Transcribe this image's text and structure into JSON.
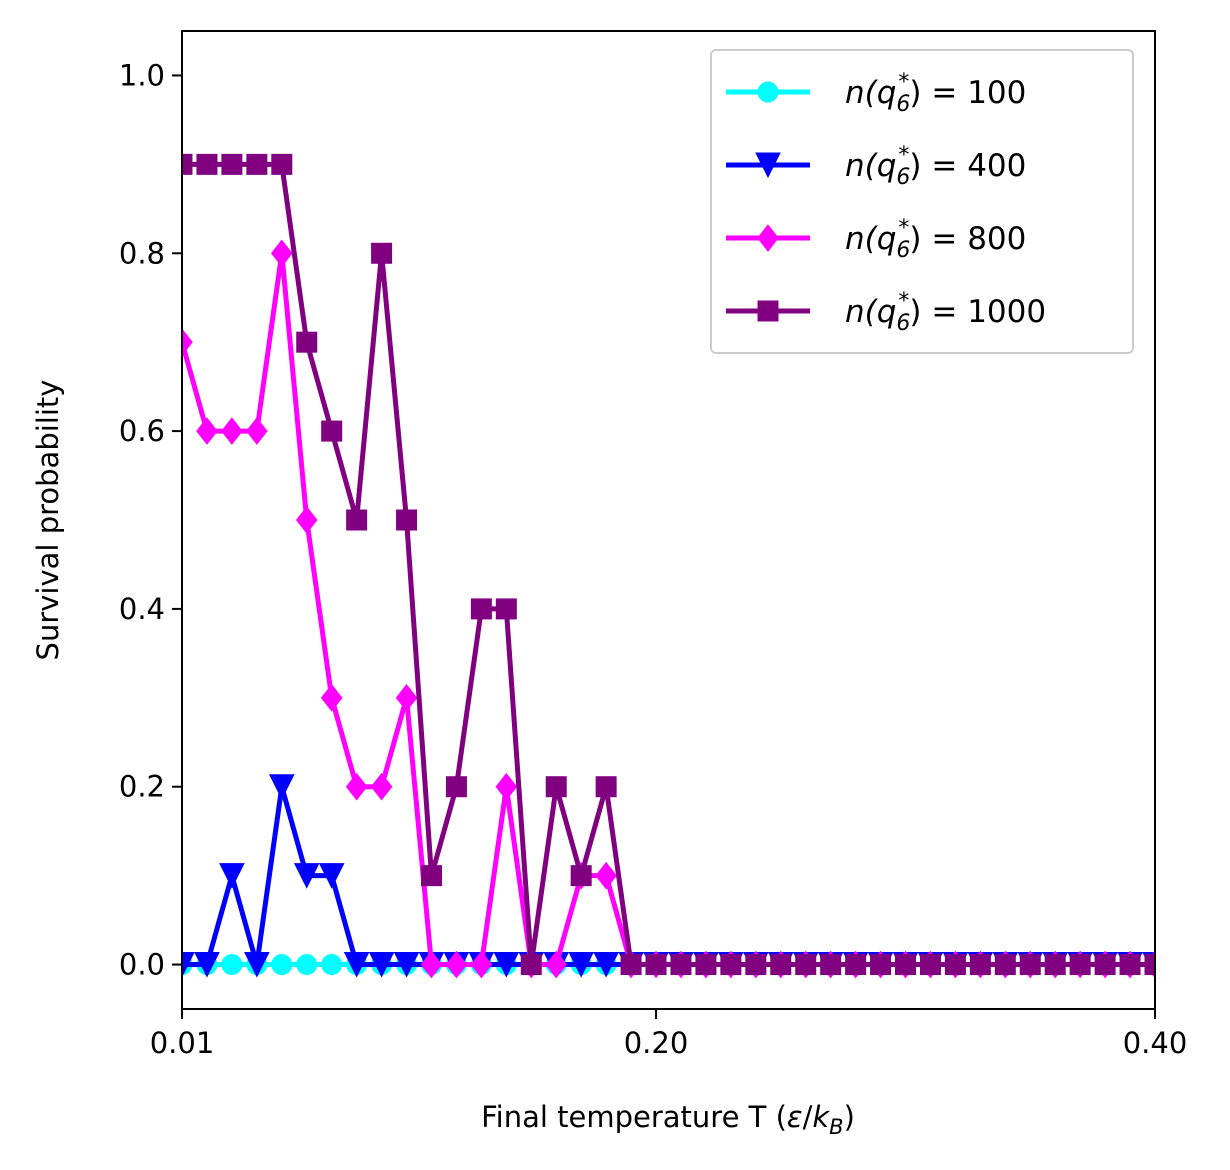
{
  "chart_data": {
    "type": "line",
    "xlabel": "Final temperature T (ε/k_B)",
    "ylabel": "Survival probability",
    "xlim": [
      0.01,
      0.4
    ],
    "ylim": [
      -0.05,
      1.05
    ],
    "xticks": [
      0.01,
      0.2,
      0.4
    ],
    "xtick_labels": [
      "0.01",
      "0.20",
      "0.40"
    ],
    "yticks": [
      0.0,
      0.2,
      0.4,
      0.6,
      0.8,
      1.0
    ],
    "ytick_labels": [
      "0.0",
      "0.2",
      "0.4",
      "0.6",
      "0.8",
      "1.0"
    ],
    "grid": false,
    "legend_position": "top-right",
    "x": [
      0.01,
      0.02,
      0.03,
      0.04,
      0.05,
      0.06,
      0.07,
      0.08,
      0.09,
      0.1,
      0.11,
      0.12,
      0.13,
      0.14,
      0.15,
      0.16,
      0.17,
      0.18,
      0.19,
      0.2,
      0.21,
      0.22,
      0.23,
      0.24,
      0.25,
      0.26,
      0.27,
      0.28,
      0.29,
      0.3,
      0.31,
      0.32,
      0.33,
      0.34,
      0.35,
      0.36,
      0.37,
      0.38,
      0.39,
      0.4
    ],
    "series": [
      {
        "name": "n(q6*) = 100",
        "legend_label": {
          "prefix": "n(q",
          "sub": "6",
          "sup": "*",
          "suffix": ") = 100"
        },
        "color": "#00ffff",
        "marker": "circle",
        "values": [
          0,
          0,
          0,
          0,
          0,
          0,
          0,
          0,
          0,
          0,
          0,
          0,
          0,
          0,
          0,
          0,
          0,
          0,
          0,
          0,
          0,
          0,
          0,
          0,
          0,
          0,
          0,
          0,
          0,
          0,
          0,
          0,
          0,
          0,
          0,
          0,
          0,
          0,
          0,
          0
        ]
      },
      {
        "name": "n(q6*) = 400",
        "legend_label": {
          "prefix": "n(q",
          "sub": "6",
          "sup": "*",
          "suffix": ") = 400"
        },
        "color": "#0000ff",
        "marker": "triangle-down",
        "values": [
          0,
          0,
          0.1,
          0,
          0.2,
          0.1,
          0.1,
          0,
          0,
          0,
          0,
          0,
          0,
          0,
          0,
          0,
          0,
          0,
          0,
          0,
          0,
          0,
          0,
          0,
          0,
          0,
          0,
          0,
          0,
          0,
          0,
          0,
          0,
          0,
          0,
          0,
          0,
          0,
          0,
          0
        ]
      },
      {
        "name": "n(q6*) = 800",
        "legend_label": {
          "prefix": "n(q",
          "sub": "6",
          "sup": "*",
          "suffix": ") = 800"
        },
        "color": "#ff00ff",
        "marker": "diamond",
        "values": [
          0.7,
          0.6,
          0.6,
          0.6,
          0.8,
          0.5,
          0.3,
          0.2,
          0.2,
          0.3,
          0,
          0,
          0,
          0.2,
          0,
          0,
          0.1,
          0.1,
          0,
          0,
          0,
          0,
          0,
          0,
          0,
          0,
          0,
          0,
          0,
          0,
          0,
          0,
          0,
          0,
          0,
          0,
          0,
          0,
          0,
          0
        ]
      },
      {
        "name": "n(q6*) = 1000",
        "legend_label": {
          "prefix": "n(q",
          "sub": "6",
          "sup": "*",
          "suffix": ") = 1000"
        },
        "color": "#800080",
        "marker": "square",
        "values": [
          0.9,
          0.9,
          0.9,
          0.9,
          0.9,
          0.7,
          0.6,
          0.5,
          0.8,
          0.5,
          0.1,
          0.2,
          0.4,
          0.4,
          0,
          0.2,
          0.1,
          0.2,
          0,
          0,
          0,
          0,
          0,
          0,
          0,
          0,
          0,
          0,
          0,
          0,
          0,
          0,
          0,
          0,
          0,
          0,
          0,
          0,
          0,
          0
        ]
      }
    ]
  }
}
